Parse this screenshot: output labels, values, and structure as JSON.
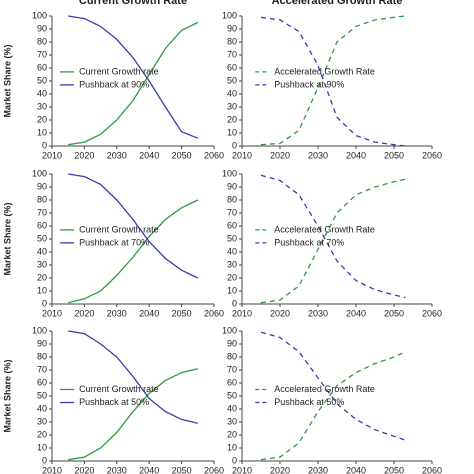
{
  "chart_data": [
    {
      "type": "line",
      "title": "Current Growth Rate",
      "ylabel": "Market Share (%)",
      "x": [
        2015,
        2020,
        2025,
        2030,
        2035,
        2040,
        2045,
        2050,
        2055
      ],
      "series": [
        {
          "name": "Current Growth rate",
          "color": "#2e9a3e",
          "line_style": "solid",
          "values": [
            1,
            3,
            9,
            20,
            35,
            55,
            75,
            89,
            95
          ]
        },
        {
          "name": "Pushback at 90%",
          "color": "#3b3bb0",
          "line_style": "solid",
          "values": [
            100,
            98,
            92,
            82,
            68,
            50,
            30,
            11,
            6
          ]
        }
      ],
      "xlim": [
        2010,
        2060
      ],
      "xticks": [
        2010,
        2020,
        2030,
        2040,
        2050,
        2060
      ],
      "ylim": [
        0,
        100
      ],
      "yticks": [
        0,
        10,
        20,
        30,
        40,
        50,
        60,
        70,
        80,
        90,
        100
      ],
      "legend": "center left"
    },
    {
      "type": "line",
      "title": "Accelerated Growth Rate",
      "x": [
        2015,
        2020,
        2025,
        2030,
        2035,
        2040,
        2045,
        2050,
        2053
      ],
      "series": [
        {
          "name": "Accelerated Growth Rate",
          "color": "#2e9a3e",
          "line_style": "dashed",
          "values": [
            1,
            2,
            12,
            45,
            80,
            92,
            97,
            99,
            100
          ]
        },
        {
          "name": "Pushback at 90%",
          "color": "#3b3bb0",
          "line_style": "dashed",
          "values": [
            99,
            97,
            88,
            62,
            22,
            8,
            3,
            1,
            0
          ]
        }
      ],
      "xlim": [
        2010,
        2060
      ],
      "xticks": [
        2010,
        2020,
        2030,
        2040,
        2050,
        2060
      ],
      "ylim": [
        0,
        100
      ],
      "yticks": [
        0,
        10,
        20,
        30,
        40,
        50,
        60,
        70,
        80,
        90,
        100
      ],
      "legend": "center right"
    },
    {
      "type": "line",
      "ylabel": "Market Share (%)",
      "x": [
        2015,
        2020,
        2025,
        2030,
        2035,
        2040,
        2045,
        2050,
        2055
      ],
      "series": [
        {
          "name": "Current Growth rate",
          "color": "#2e9a3e",
          "line_style": "solid",
          "values": [
            1,
            4,
            10,
            22,
            36,
            52,
            65,
            74,
            80
          ]
        },
        {
          "name": "Pushback at 70%",
          "color": "#3b3bb0",
          "line_style": "solid",
          "values": [
            100,
            98,
            92,
            80,
            65,
            48,
            35,
            26,
            20
          ]
        }
      ],
      "xlim": [
        2010,
        2060
      ],
      "xticks": [
        2010,
        2020,
        2030,
        2040,
        2050,
        2060
      ],
      "ylim": [
        0,
        100
      ],
      "yticks": [
        0,
        10,
        20,
        30,
        40,
        50,
        60,
        70,
        80,
        90,
        100
      ],
      "legend": "center left"
    },
    {
      "type": "line",
      "x": [
        2015,
        2020,
        2025,
        2030,
        2035,
        2040,
        2045,
        2050,
        2053
      ],
      "series": [
        {
          "name": "Accelerated Growth Rate",
          "color": "#2e9a3e",
          "line_style": "dashed",
          "values": [
            1,
            3,
            14,
            42,
            70,
            84,
            90,
            94,
            96
          ]
        },
        {
          "name": "Pushback at 70%",
          "color": "#3b3bb0",
          "line_style": "dashed",
          "values": [
            99,
            95,
            84,
            60,
            33,
            18,
            11,
            7,
            5
          ]
        }
      ],
      "xlim": [
        2010,
        2060
      ],
      "xticks": [
        2010,
        2020,
        2030,
        2040,
        2050,
        2060
      ],
      "ylim": [
        0,
        100
      ],
      "yticks": [
        0,
        10,
        20,
        30,
        40,
        50,
        60,
        70,
        80,
        90,
        100
      ],
      "legend": "center right"
    },
    {
      "type": "line",
      "ylabel": "Market Share (%)",
      "x": [
        2015,
        2020,
        2025,
        2030,
        2035,
        2040,
        2045,
        2050,
        2055
      ],
      "series": [
        {
          "name": "Current Growth rate",
          "color": "#2e9a3e",
          "line_style": "solid",
          "values": [
            1,
            3,
            10,
            22,
            38,
            52,
            62,
            68,
            71
          ]
        },
        {
          "name": "Pushback at 50%",
          "color": "#3b3bb0",
          "line_style": "solid",
          "values": [
            100,
            98,
            90,
            80,
            65,
            48,
            38,
            32,
            29
          ]
        }
      ],
      "xlim": [
        2010,
        2060
      ],
      "xticks": [
        2010,
        2020,
        2030,
        2040,
        2050,
        2060
      ],
      "ylim": [
        0,
        100
      ],
      "yticks": [
        0,
        10,
        20,
        30,
        40,
        50,
        60,
        70,
        80,
        90,
        100
      ],
      "legend": "lower left"
    },
    {
      "type": "line",
      "x": [
        2015,
        2020,
        2025,
        2030,
        2035,
        2040,
        2045,
        2050,
        2053
      ],
      "series": [
        {
          "name": "Accelerated Growth Rate",
          "color": "#2e9a3e",
          "line_style": "dashed",
          "values": [
            1,
            3,
            14,
            38,
            58,
            68,
            75,
            80,
            84
          ]
        },
        {
          "name": "Pushback at 50%",
          "color": "#3b3bb0",
          "line_style": "dashed",
          "values": [
            99,
            95,
            84,
            64,
            44,
            32,
            24,
            19,
            16
          ]
        }
      ],
      "xlim": [
        2010,
        2060
      ],
      "xticks": [
        2010,
        2020,
        2030,
        2040,
        2050,
        2060
      ],
      "ylim": [
        0,
        100
      ],
      "yticks": [
        0,
        10,
        20,
        30,
        40,
        50,
        60,
        70,
        80,
        90,
        100
      ],
      "legend": "lower right"
    }
  ]
}
